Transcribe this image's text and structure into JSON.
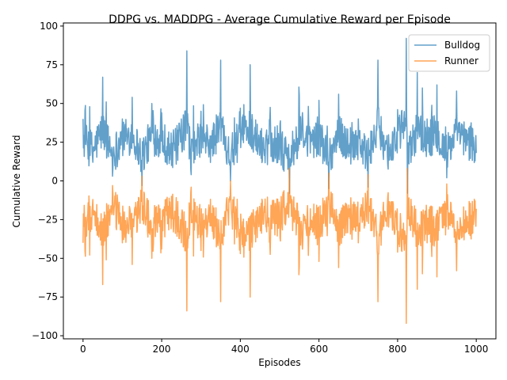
{
  "chart_data": {
    "type": "line",
    "title": "DDPG vs. MADDPG - Average Cumulative Reward per Episode",
    "xlabel": "Episodes",
    "ylabel": "Cumulative Reward",
    "xlim": [
      -50,
      1050
    ],
    "ylim": [
      -102,
      102
    ],
    "xticks": [
      0,
      200,
      400,
      600,
      800,
      1000
    ],
    "yticks": [
      -100,
      -75,
      -50,
      -25,
      0,
      25,
      50,
      75,
      100
    ],
    "grid": false,
    "legend": "top-right",
    "series": [
      {
        "name": "Bulldog",
        "color": "#1f77b4",
        "x": [
          0,
          25,
          50,
          75,
          100,
          125,
          150,
          175,
          200,
          225,
          250,
          264,
          275,
          300,
          325,
          350,
          375,
          400,
          425,
          450,
          475,
          500,
          525,
          550,
          575,
          600,
          625,
          650,
          675,
          700,
          725,
          750,
          775,
          800,
          822,
          825,
          850,
          875,
          900,
          925,
          950,
          975,
          1000
        ],
        "y": [
          40,
          12,
          67,
          3,
          40,
          54,
          -3,
          50,
          44,
          10,
          40,
          84,
          4,
          45,
          25,
          78,
          0,
          47,
          75,
          20,
          40,
          22,
          -8,
          55,
          30,
          52,
          -5,
          56,
          23,
          40,
          -4,
          78,
          10,
          46,
          92,
          -8,
          70,
          40,
          62,
          2,
          58,
          33,
          18
        ]
      },
      {
        "name": "Runner",
        "color": "#ff7f0e",
        "x": [
          0,
          25,
          50,
          75,
          100,
          125,
          150,
          175,
          200,
          225,
          250,
          264,
          275,
          300,
          325,
          350,
          375,
          400,
          425,
          450,
          475,
          500,
          525,
          550,
          575,
          600,
          625,
          650,
          675,
          700,
          725,
          750,
          775,
          800,
          822,
          825,
          850,
          875,
          900,
          925,
          950,
          975,
          1000
        ],
        "y": [
          -40,
          -12,
          -67,
          -3,
          -40,
          -54,
          3,
          -50,
          -44,
          -10,
          -40,
          -84,
          -4,
          -45,
          -25,
          -78,
          0,
          -47,
          -75,
          -20,
          -40,
          -22,
          8,
          -55,
          -30,
          -52,
          5,
          -56,
          -23,
          -40,
          4,
          -78,
          -10,
          -46,
          -92,
          8,
          -70,
          -40,
          -62,
          -2,
          -58,
          -33,
          -18
        ]
      }
    ]
  }
}
